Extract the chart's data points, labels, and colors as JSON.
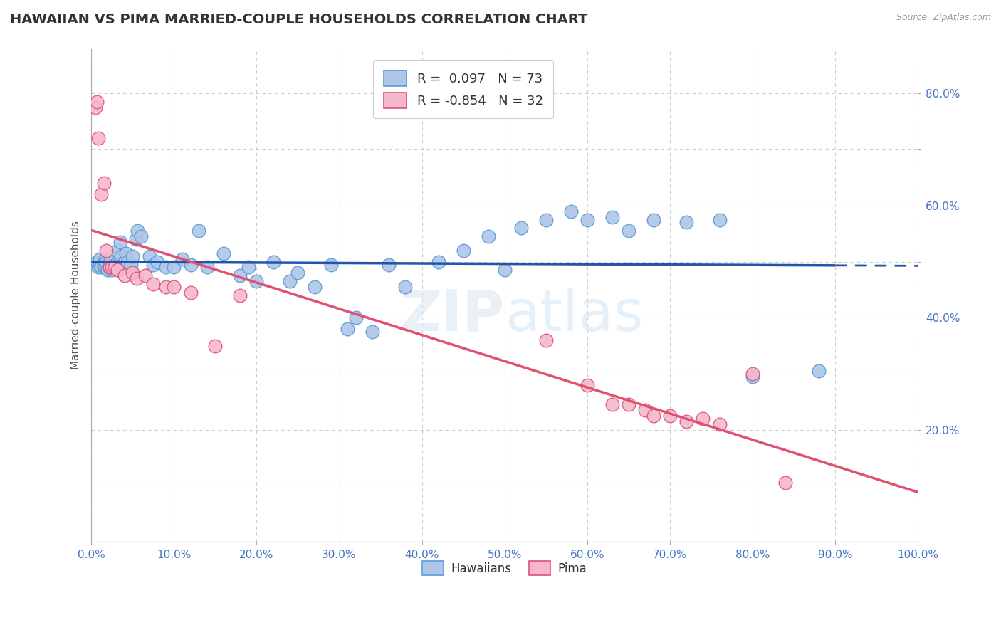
{
  "title": "HAWAIIAN VS PIMA MARRIED-COUPLE HOUSEHOLDS CORRELATION CHART",
  "source_text": "Source: ZipAtlas.com",
  "ylabel": "Married-couple Households",
  "xlim": [
    0.0,
    1.0
  ],
  "ylim": [
    0.0,
    0.88
  ],
  "xtick_positions": [
    0.0,
    0.1,
    0.2,
    0.3,
    0.4,
    0.5,
    0.6,
    0.7,
    0.8,
    0.9,
    1.0
  ],
  "xticklabels": [
    "0.0%",
    "10.0%",
    "20.0%",
    "30.0%",
    "40.0%",
    "50.0%",
    "60.0%",
    "70.0%",
    "80.0%",
    "90.0%",
    "100.0%"
  ],
  "ytick_positions": [
    0.0,
    0.1,
    0.2,
    0.3,
    0.4,
    0.5,
    0.6,
    0.7,
    0.8
  ],
  "ytick_labels": [
    "",
    "",
    "20.0%",
    "",
    "40.0%",
    "",
    "60.0%",
    "",
    "80.0%"
  ],
  "hawaiian_color": "#aec6e8",
  "pima_color": "#f5b8cb",
  "hawaiian_edge": "#5b9bd5",
  "pima_edge": "#e05080",
  "hawaiian_line_color": "#2255aa",
  "pima_line_color": "#e05070",
  "hawaiian_R": 0.097,
  "hawaiian_N": 73,
  "pima_R": -0.854,
  "pima_N": 32,
  "background_color": "#ffffff",
  "grid_color": "#cccccc",
  "hawaiian_x": [
    0.005,
    0.007,
    0.008,
    0.01,
    0.01,
    0.01,
    0.012,
    0.015,
    0.015,
    0.016,
    0.017,
    0.018,
    0.018,
    0.02,
    0.021,
    0.022,
    0.022,
    0.023,
    0.025,
    0.025,
    0.027,
    0.028,
    0.03,
    0.032,
    0.035,
    0.036,
    0.038,
    0.04,
    0.042,
    0.044,
    0.048,
    0.05,
    0.054,
    0.056,
    0.06,
    0.07,
    0.075,
    0.08,
    0.09,
    0.1,
    0.11,
    0.12,
    0.13,
    0.14,
    0.16,
    0.18,
    0.19,
    0.2,
    0.22,
    0.24,
    0.25,
    0.27,
    0.29,
    0.31,
    0.32,
    0.34,
    0.36,
    0.38,
    0.42,
    0.45,
    0.48,
    0.5,
    0.52,
    0.55,
    0.58,
    0.6,
    0.63,
    0.65,
    0.68,
    0.72,
    0.76,
    0.8,
    0.88
  ],
  "hawaiian_y": [
    0.495,
    0.5,
    0.49,
    0.495,
    0.5,
    0.505,
    0.49,
    0.49,
    0.495,
    0.5,
    0.505,
    0.49,
    0.5,
    0.485,
    0.49,
    0.495,
    0.5,
    0.5,
    0.485,
    0.49,
    0.49,
    0.495,
    0.49,
    0.52,
    0.535,
    0.51,
    0.495,
    0.5,
    0.515,
    0.5,
    0.495,
    0.51,
    0.54,
    0.555,
    0.545,
    0.51,
    0.495,
    0.5,
    0.49,
    0.49,
    0.505,
    0.495,
    0.555,
    0.49,
    0.515,
    0.475,
    0.49,
    0.465,
    0.5,
    0.465,
    0.48,
    0.455,
    0.495,
    0.38,
    0.4,
    0.375,
    0.495,
    0.455,
    0.5,
    0.52,
    0.545,
    0.485,
    0.56,
    0.575,
    0.59,
    0.575,
    0.58,
    0.555,
    0.575,
    0.57,
    0.575,
    0.295,
    0.305
  ],
  "pima_x": [
    0.005,
    0.007,
    0.008,
    0.012,
    0.015,
    0.018,
    0.022,
    0.025,
    0.028,
    0.032,
    0.04,
    0.05,
    0.055,
    0.065,
    0.075,
    0.09,
    0.1,
    0.12,
    0.15,
    0.18,
    0.55,
    0.6,
    0.63,
    0.65,
    0.67,
    0.68,
    0.7,
    0.72,
    0.74,
    0.76,
    0.8,
    0.84
  ],
  "pima_y": [
    0.775,
    0.785,
    0.72,
    0.62,
    0.64,
    0.52,
    0.49,
    0.49,
    0.49,
    0.485,
    0.475,
    0.48,
    0.47,
    0.475,
    0.46,
    0.455,
    0.455,
    0.445,
    0.35,
    0.44,
    0.36,
    0.28,
    0.245,
    0.245,
    0.235,
    0.225,
    0.225,
    0.215,
    0.22,
    0.21,
    0.3,
    0.105
  ]
}
